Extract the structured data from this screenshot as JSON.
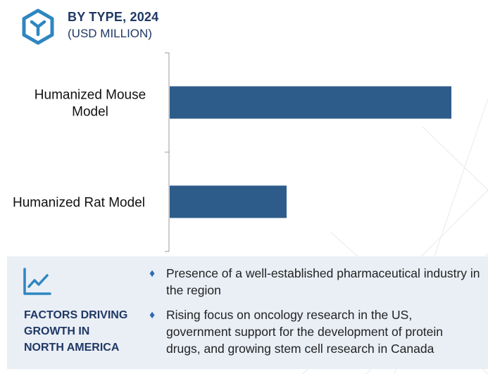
{
  "header": {
    "title": "BY TYPE, 2024",
    "subtitle": "(USD MILLION)",
    "icon": "hexagon-y-icon"
  },
  "chart_data": {
    "type": "bar",
    "orientation": "horizontal",
    "title": "BY TYPE, 2024",
    "subtitle": "(USD MILLION)",
    "categories": [
      "Humanized Mouse Model",
      "Humanized Rat Model"
    ],
    "category_label_lines": [
      [
        "Humanized Mouse",
        "Model"
      ],
      [
        "Humanized Rat Model"
      ]
    ],
    "values": [
      100,
      41.5
    ],
    "xlim": [
      0,
      100
    ],
    "xlabel": "",
    "ylabel": "",
    "bar_color": "#2e5c8a",
    "grid": false,
    "legend": "none"
  },
  "factors": {
    "icon": "trend-chart-icon",
    "title": "FACTORS DRIVING GROWTH IN NORTH AMERICA",
    "title_lines": [
      "FACTORS DRIVING",
      "GROWTH IN",
      "NORTH AMERICA"
    ],
    "bullet_marker": "♦",
    "items": [
      {
        "text": "Presence of a well-established pharmaceutical industry in the region"
      },
      {
        "text": "Rising focus on oncology research in the US, government support for the development of protein drugs, and growing stem cell research in Canada"
      }
    ]
  },
  "colors": {
    "accent": "#2e86c1",
    "title": "#1f3864",
    "bar": "#2e5c8a",
    "panel": "#eaeff6",
    "bullet": "#2e6bb5"
  }
}
